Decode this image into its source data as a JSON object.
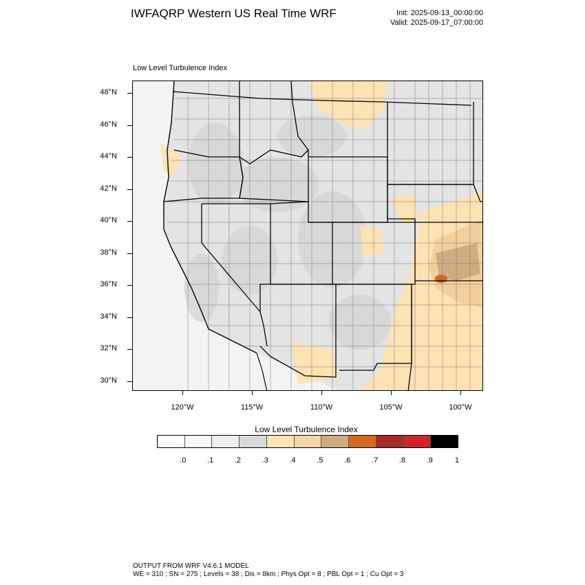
{
  "header": {
    "title": "IWFAQRP Western US Real Time WRF",
    "init": "Init: 2025-09-13_00:00:00",
    "valid": "Valid: 2025-09-17_07:00:00"
  },
  "map": {
    "title": "Low Level Turbulence Index",
    "lat_labels": [
      "48°N",
      "46°N",
      "44°N",
      "42°N",
      "40°N",
      "38°N",
      "36°N",
      "34°N",
      "32°N",
      "30°N"
    ],
    "lon_labels": [
      "120°W",
      "115°W",
      "110°W",
      "105°W",
      "100°W"
    ],
    "colors": {
      "ocean": "#f3f3f3",
      "land_base": "#e6e6e6",
      "state_border": "#000000",
      "county_border": "#555555",
      "low_index": "#fde2b3",
      "mid_index": "#f0c892",
      "high_index": "#c8a27a",
      "peak_index": "#d2691e"
    }
  },
  "colorbar": {
    "title": "Low Level Turbulence Index",
    "colors": [
      "#ffffff",
      "#f7f7f7",
      "#eeeeee",
      "#d9d9d9",
      "#ffe4b5",
      "#f5d5a6",
      "#d2aa80",
      "#d2691e",
      "#a52a2a",
      "#d2232a",
      "#000000"
    ],
    "labels": [
      ".0",
      ".1",
      ".2",
      ".3",
      ".4",
      ".5",
      ".6",
      ".7",
      ".8",
      ".9",
      "1"
    ]
  },
  "footer": {
    "line1": "OUTPUT FROM WRF V4.6.1 MODEL",
    "line2": "WE = 310 ; SN = 275 ; Levels = 38 ; Dis = 8km ; Phys Opt = 8 ; PBL Opt = 1 ; Cu Opt = 3"
  }
}
